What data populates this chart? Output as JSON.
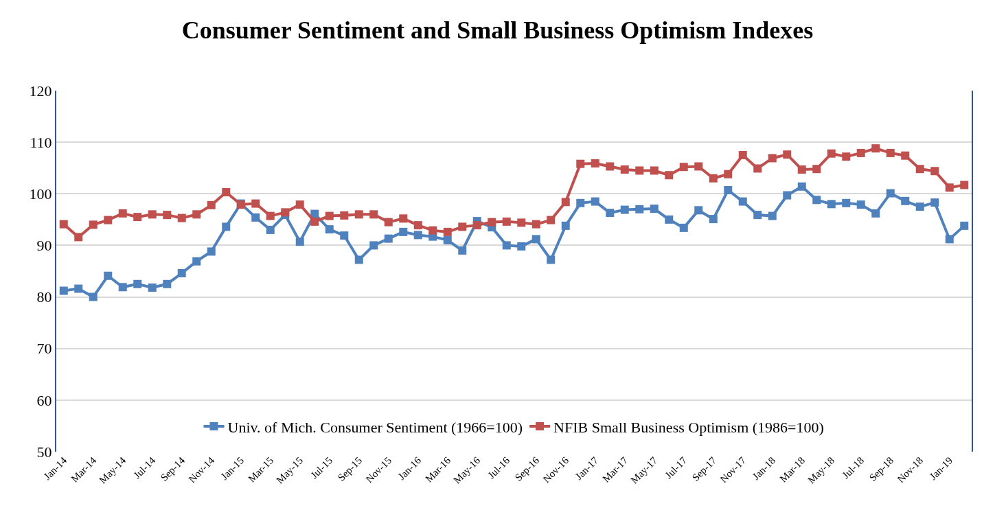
{
  "chart_data": {
    "type": "line",
    "title": "Consumer Sentiment and Small Business Optimism Indexes",
    "categories": [
      "Jan-14",
      null,
      "Mar-14",
      null,
      "May-14",
      null,
      "Jul-14",
      null,
      "Sep-14",
      null,
      "Nov-14",
      null,
      "Jan-15",
      null,
      "Mar-15",
      null,
      "May-15",
      null,
      "Jul-15",
      null,
      "Sep-15",
      null,
      "Nov-15",
      null,
      "Jan-16",
      null,
      "Mar-16",
      null,
      "May-16",
      null,
      "Jul-16",
      null,
      "Sep-16",
      null,
      "Nov-16",
      null,
      "Jan-17",
      null,
      "Mar-17",
      null,
      "May-17",
      null,
      "Jul-17",
      null,
      "Sep-17",
      null,
      "Nov-17",
      null,
      "Jan-18",
      null,
      "Mar-18",
      null,
      "May-18",
      null,
      "Jul-18",
      null,
      "Sep-18",
      null,
      "Nov-18",
      null,
      "Jan-19",
      null
    ],
    "series": [
      {
        "name": "Univ. of Mich. Consumer Sentiment (1966=100)",
        "color": "#4f81bd",
        "values": [
          81.2,
          81.6,
          80.0,
          84.1,
          81.9,
          82.5,
          81.8,
          82.5,
          84.6,
          86.9,
          88.8,
          93.6,
          98.1,
          95.4,
          93.0,
          95.9,
          90.7,
          96.1,
          93.1,
          91.9,
          87.2,
          90.0,
          91.3,
          92.6,
          92.0,
          91.7,
          91.0,
          89.0,
          94.7,
          93.5,
          90.0,
          89.8,
          91.2,
          87.2,
          93.8,
          98.2,
          98.5,
          96.3,
          96.9,
          97.0,
          97.1,
          95.0,
          93.4,
          96.8,
          95.1,
          100.7,
          98.5,
          95.9,
          95.7,
          99.7,
          101.4,
          98.8,
          98.0,
          98.2,
          97.9,
          96.2,
          100.1,
          98.6,
          97.5,
          98.3,
          91.2,
          93.8
        ]
      },
      {
        "name": "NFIB Small Business Optimism (1986=100)",
        "color": "#c0504d",
        "values": [
          94.1,
          91.6,
          94.0,
          94.9,
          96.2,
          95.5,
          96.0,
          95.9,
          95.3,
          96.0,
          97.8,
          100.3,
          97.9,
          98.1,
          95.7,
          96.4,
          97.9,
          94.6,
          95.7,
          95.8,
          96.0,
          96.0,
          94.5,
          95.2,
          93.9,
          92.9,
          92.6,
          93.6,
          93.9,
          94.5,
          94.6,
          94.4,
          94.1,
          94.9,
          98.4,
          105.8,
          105.9,
          105.3,
          104.7,
          104.5,
          104.5,
          103.6,
          105.2,
          105.3,
          103.0,
          103.8,
          107.5,
          104.9,
          106.9,
          107.6,
          104.7,
          104.8,
          107.8,
          107.2,
          107.9,
          108.8,
          107.9,
          107.4,
          104.8,
          104.4,
          101.2,
          101.7
        ]
      }
    ],
    "ylim": [
      50,
      120
    ],
    "yticks": [
      50,
      60,
      70,
      80,
      90,
      100,
      110,
      120
    ],
    "grid": "y",
    "legend": "bottom",
    "marker": "square",
    "line_style": "solid"
  }
}
